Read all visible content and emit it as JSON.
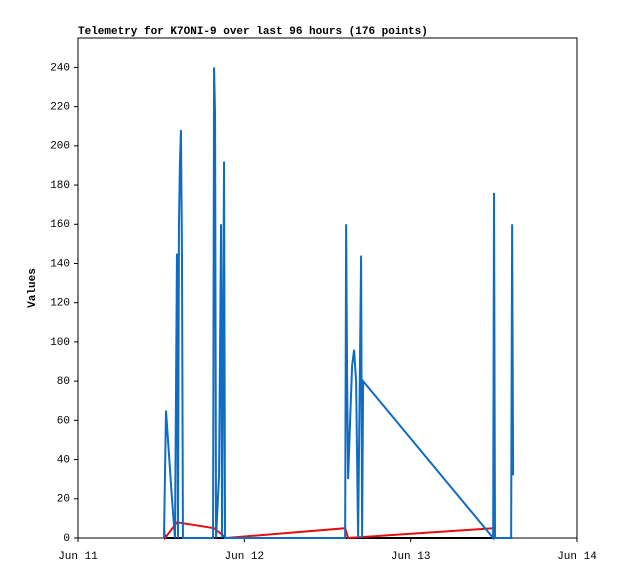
{
  "chart_data": {
    "type": "line",
    "title": "Telemetry for K7ONI-9 over last 96 hours (176 points)",
    "y_label": "Values",
    "xlim": [
      0,
      3
    ],
    "xticks": [
      {
        "value": 0,
        "label": "Jun 11"
      },
      {
        "value": 1,
        "label": "Jun 12"
      },
      {
        "value": 2,
        "label": "Jun 13"
      },
      {
        "value": 3,
        "label": "Jun 14"
      }
    ],
    "ylim": [
      0,
      255
    ],
    "yticks": [
      0,
      20,
      40,
      60,
      80,
      100,
      120,
      140,
      160,
      180,
      200,
      220,
      240
    ],
    "series": [
      {
        "color": "#000000",
        "x": [
          0.517,
          1.0,
          2.0,
          2.61
        ],
        "values": [
          0,
          0,
          0,
          0
        ]
      },
      {
        "color": "#e01010",
        "x": [
          0.517,
          0.523,
          0.595,
          0.818,
          0.89,
          1.606,
          1.624,
          2.496
        ],
        "values": [
          5,
          0,
          8,
          5,
          0,
          5,
          0,
          5
        ]
      },
      {
        "color": "#0f6cc2",
        "x": [
          0.517,
          0.529,
          0.541,
          0.565,
          0.583,
          0.595,
          0.601,
          0.607,
          0.613,
          0.619,
          0.625,
          0.631,
          0.812,
          0.818,
          0.824,
          0.83,
          0.848,
          0.86,
          0.866,
          0.878,
          0.884,
          1.606,
          1.612,
          1.618,
          1.624,
          1.636,
          1.648,
          1.66,
          1.672,
          1.684,
          1.702,
          1.708,
          1.714,
          2.496,
          2.501,
          2.507,
          2.604,
          2.61,
          2.616
        ],
        "values": [
          0,
          65,
          50,
          20,
          0,
          145,
          0,
          160,
          192,
          208,
          145,
          0,
          0,
          240,
          216,
          0,
          32,
          160,
          0,
          192,
          0,
          0,
          160,
          80,
          30,
          60,
          88,
          96,
          80,
          0,
          144,
          0,
          80,
          0,
          176,
          0,
          0,
          160,
          32
        ]
      }
    ]
  }
}
